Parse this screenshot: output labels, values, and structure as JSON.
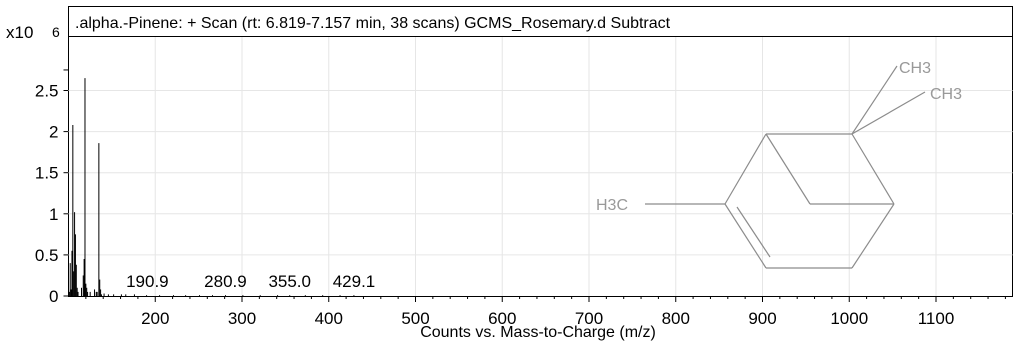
{
  "chart_data": {
    "type": "bar",
    "title": ".alpha.-Pinene: + Scan (rt: 6.819-7.157 min, 38 scans) GCMS_Rosemary.d  Subtract",
    "y_multiplier_label": "x10",
    "y_multiplier_exp": "6",
    "xlabel": "Counts vs. Mass-to-Charge (m/z)",
    "ylabel": "",
    "xlim": [
      100,
      1200
    ],
    "ylim": [
      0,
      2.8
    ],
    "x_ticks": [
      200,
      300,
      400,
      500,
      600,
      700,
      800,
      900,
      1000,
      1100
    ],
    "y_ticks": [
      0,
      0.5,
      1,
      1.5,
      2,
      2.5
    ],
    "y_tick_labels": [
      "0",
      "0.5",
      "1",
      "1.5",
      "2",
      "2.5"
    ],
    "grid": true,
    "series": [
      {
        "x": [
          100,
          101,
          102,
          103,
          104,
          105,
          106,
          107,
          108,
          109,
          110,
          111,
          115,
          117,
          118,
          119,
          120,
          121,
          122,
          125,
          130,
          132,
          133,
          135,
          136,
          137,
          138,
          141,
          146,
          152,
          161,
          166,
          176,
          190,
          205,
          221,
          235,
          251,
          266,
          281,
          301,
          321,
          341,
          355,
          373,
          393,
          413,
          429
        ],
        "values": [
          0.2,
          0.05,
          0.4,
          0.08,
          0.55,
          2.08,
          0.3,
          1.02,
          0.75,
          0.38,
          0.1,
          0.05,
          0.1,
          0.25,
          0.45,
          2.65,
          0.15,
          0.1,
          0.05,
          0.05,
          0.08,
          0.05,
          0.05,
          1.86,
          0.2,
          0.08,
          0.02,
          0.03,
          0.02,
          0.02,
          0.02,
          0.02,
          0.02,
          0.01,
          0.01,
          0.01,
          0.01,
          0.01,
          0.01,
          0.01,
          0.01,
          0.01,
          0.01,
          0.01,
          0.01,
          0.01,
          0.01,
          0.01
        ]
      }
    ],
    "peak_labels": [
      "190.9",
      "280.9",
      "355.0",
      "429.1"
    ],
    "structure_labels": [
      "CH3",
      "CH3",
      "H3C"
    ]
  }
}
